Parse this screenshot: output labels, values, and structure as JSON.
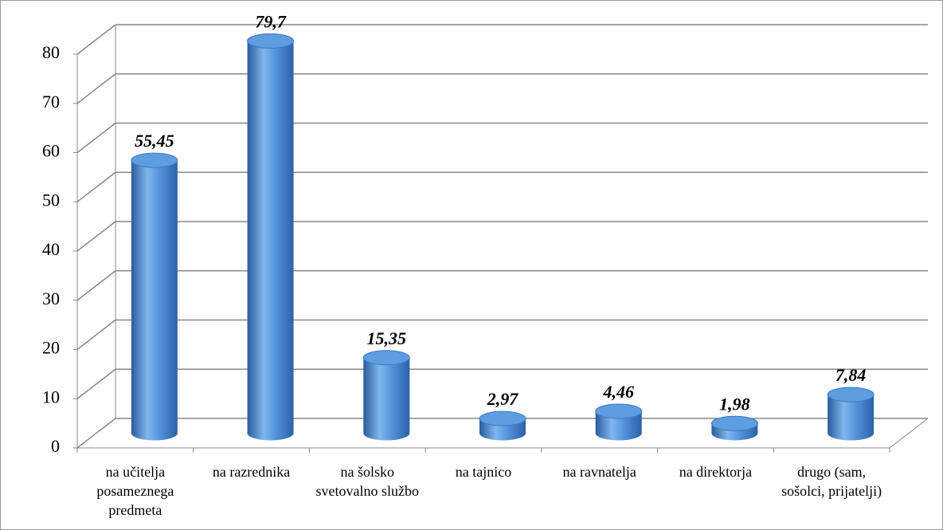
{
  "chart_data": {
    "type": "bar",
    "categories": [
      "na učitelja posameznega predmeta",
      "na razrednika",
      "na šolsko svetovalno službo",
      "na tajnico",
      "na ravnatelja",
      "na direktorja",
      "drugo (sam, sošolci, prijatelji)"
    ],
    "values": [
      55.45,
      79.7,
      15.35,
      2.97,
      4.46,
      1.98,
      7.84
    ],
    "value_labels": [
      "55,45",
      "79,7",
      "15,35",
      "2,97",
      "4,46",
      "1,98",
      "7,84"
    ],
    "color": "#4a8ad4",
    "ylim": [
      0,
      80
    ],
    "yticks": [
      0,
      10,
      20,
      30,
      40,
      50,
      60,
      70,
      80
    ],
    "grid": true
  }
}
